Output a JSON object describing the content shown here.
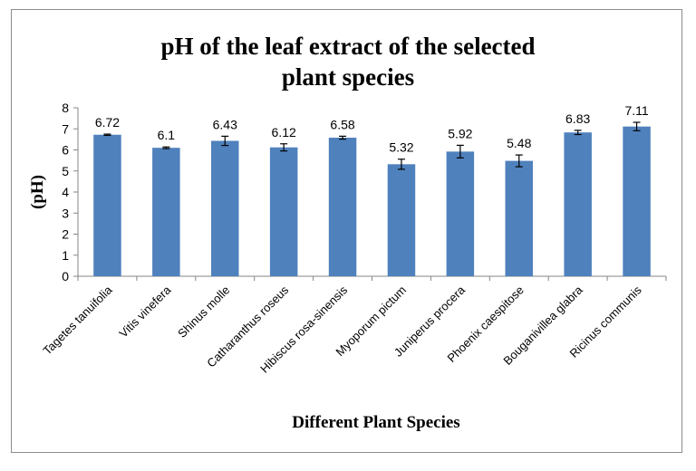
{
  "chart_data": {
    "type": "bar",
    "title": "pH of the leaf extract of the selected plant species",
    "title_lines": [
      "pH of the leaf extract of the selected",
      "plant species"
    ],
    "xlabel": "Different Plant Species",
    "ylabel": "(pH)",
    "ylim": [
      0,
      8
    ],
    "yticks": [
      0,
      1,
      2,
      3,
      4,
      5,
      6,
      7,
      8
    ],
    "grid": false,
    "legend": "none",
    "bar_color": "#4f81bd",
    "categories": [
      "Tagetes tanuifolia",
      "Vitis vinefera",
      "Shinus molle",
      "Catharanthus roseus",
      "Hibiscus rosa-sinensis",
      "Myoporum pictum",
      "Juniperus procera",
      "Phoenix caespitose",
      "Bouganivillea glabra",
      "Ricinus communis"
    ],
    "values": [
      6.72,
      6.1,
      6.43,
      6.12,
      6.58,
      5.32,
      5.92,
      5.48,
      6.83,
      7.11
    ],
    "value_labels": [
      "6.72",
      "6.1",
      "6.43",
      "6.12",
      "6.58",
      "5.32",
      "5.92",
      "5.48",
      "6.83",
      "7.11"
    ],
    "error": [
      0.03,
      0.04,
      0.22,
      0.17,
      0.07,
      0.24,
      0.3,
      0.28,
      0.1,
      0.2
    ]
  }
}
